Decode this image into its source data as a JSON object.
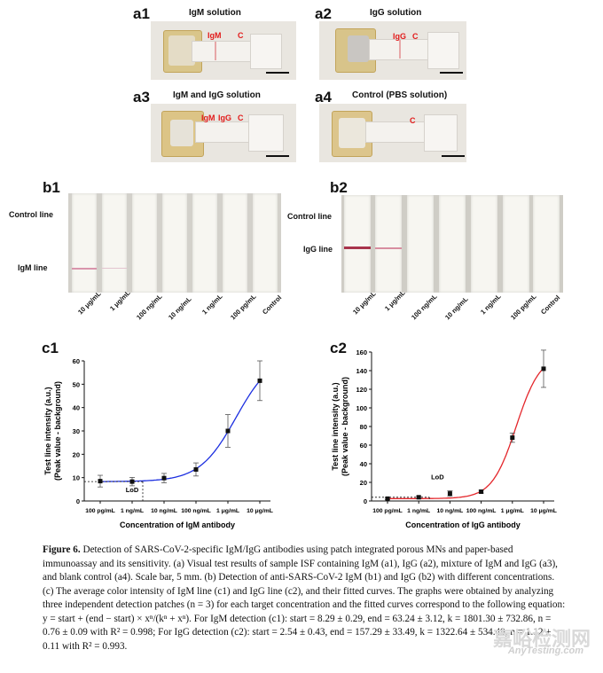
{
  "panel_a": [
    {
      "label": "a1",
      "title": "IgM solution",
      "marks": [
        "IgM",
        "C"
      ]
    },
    {
      "label": "a2",
      "title": "IgG solution",
      "marks": [
        "IgG",
        "C"
      ]
    },
    {
      "label": "a3",
      "title": "IgM and IgG solution",
      "marks": [
        "IgM",
        "IgG",
        "C"
      ]
    },
    {
      "label": "a4",
      "title": "Control (PBS solution)",
      "marks": [
        "C"
      ]
    }
  ],
  "panel_b": [
    {
      "label": "b1",
      "lines": [
        "Control line",
        "IgM line"
      ]
    },
    {
      "label": "b2",
      "lines": [
        "Control line",
        "IgG line"
      ]
    }
  ],
  "concentrations": [
    "10 μg/mL",
    "1 μg/mL",
    "100 ng/mL",
    "10 ng/mL",
    "1 ng/mL",
    "100 pg/mL",
    "Control"
  ],
  "chart_data": [
    {
      "label": "c1",
      "type": "scatter",
      "xlabel": "Concentration of IgM antibody",
      "ylabel_line1": "Test line intensity (a.u.)",
      "ylabel_line2": "(Peak value - background)",
      "categories": [
        "100 pg/mL",
        "1 ng/mL",
        "10 ng/mL",
        "100 ng/mL",
        "1 μg/mL",
        "10 μg/mL"
      ],
      "values": [
        8.5,
        8.3,
        9.8,
        13.5,
        30,
        51.5
      ],
      "errors": [
        2.5,
        1.8,
        2,
        2.8,
        7,
        8.5
      ],
      "yticks": [
        "0",
        "10",
        "20",
        "30",
        "40",
        "50",
        "60"
      ],
      "ylim": [
        0,
        60
      ],
      "fit": {
        "start": 8.29,
        "end": 63.24,
        "k": 1801.3,
        "n": 0.76
      },
      "fit_color": "#1c2fe0",
      "lod_label": "LoD"
    },
    {
      "label": "c2",
      "type": "scatter",
      "xlabel": "Concentration of IgG antibody",
      "ylabel_line1": "Test line intensity (a.u.)",
      "ylabel_line2": "(Peak value - background)",
      "categories": [
        "100 pg/mL",
        "1 ng/mL",
        "10 ng/mL",
        "100 ng/mL",
        "1 μg/mL",
        "10 μg/mL"
      ],
      "values": [
        2.5,
        4,
        8,
        10,
        68,
        142
      ],
      "errors": [
        1,
        1,
        3,
        1.5,
        5,
        20
      ],
      "yticks": [
        "0",
        "20",
        "40",
        "60",
        "80",
        "100",
        "120",
        "140",
        "160"
      ],
      "ylim": [
        0,
        160
      ],
      "fit": {
        "start": 2.54,
        "end": 157.29,
        "k": 1322.64,
        "n": 1.12
      },
      "fit_color": "#e4262b",
      "lod_label": "LoD"
    }
  ],
  "caption": {
    "fig_label": "Figure 6.",
    "text": "Detection of SARS-CoV-2-specific IgM/IgG antibodies using patch integrated porous MNs and paper-based immunoassay and its sensitivity. (a) Visual test results of sample ISF containing IgM (a1), IgG (a2), mixture of IgM and IgG (a3), and blank control (a4). Scale bar, 5 mm. (b) Detection of anti-SARS-CoV-2 IgM (b1) and IgG (b2) with different concentrations. (c) The average color intensity of IgM line (c1) and IgG line (c2), and their fitted curves. The graphs were obtained by analyzing three independent detection patches (n = 3) for each target concentration and the fitted curves correspond to the following equation: y = start + (end − start) × xⁿ/(kⁿ + xⁿ). For IgM detection (c1): start = 8.29 ± 0.29, end = 63.24 ± 3.12, k = 1801.30 ± 732.86, n = 0.76 ± 0.09 with R² = 0.998; For IgG detection (c2): start = 2.54 ± 0.43, end = 157.29 ± 33.49, k = 1322.64 ± 534.49, n = 1.12 ± 0.11 with R² = 0.993."
  },
  "watermark": {
    "cn": "嘉峪检测网",
    "en": "AnyTesting.com"
  }
}
